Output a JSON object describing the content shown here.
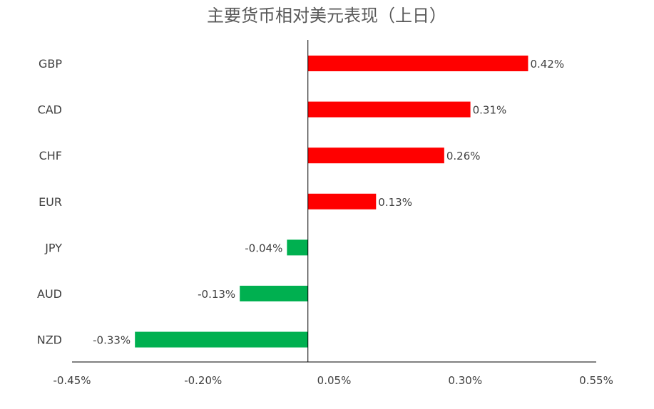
{
  "chart_data": {
    "type": "bar",
    "orientation": "horizontal",
    "title": "主要货币相对美元表现（上日）",
    "categories": [
      "GBP",
      "CAD",
      "CHF",
      "EUR",
      "JPY",
      "AUD",
      "NZD"
    ],
    "values": [
      0.42,
      0.31,
      0.26,
      0.13,
      -0.04,
      -0.13,
      -0.33
    ],
    "value_labels": [
      "0.42%",
      "0.31%",
      "0.26%",
      "0.13%",
      "-0.04%",
      "-0.13%",
      "-0.33%"
    ],
    "xlim": [
      -0.45,
      0.55
    ],
    "x_ticks": [
      -0.45,
      -0.2,
      0.05,
      0.3,
      0.55
    ],
    "x_tick_labels": [
      "-0.45%",
      "-0.20%",
      "0.05%",
      "0.30%",
      "0.55%"
    ],
    "grid": false,
    "legend": "none",
    "colors": {
      "positive": "#FF0000",
      "negative": "#00B050",
      "axis": "#000000",
      "text": "#404040",
      "title": "#595959"
    }
  }
}
